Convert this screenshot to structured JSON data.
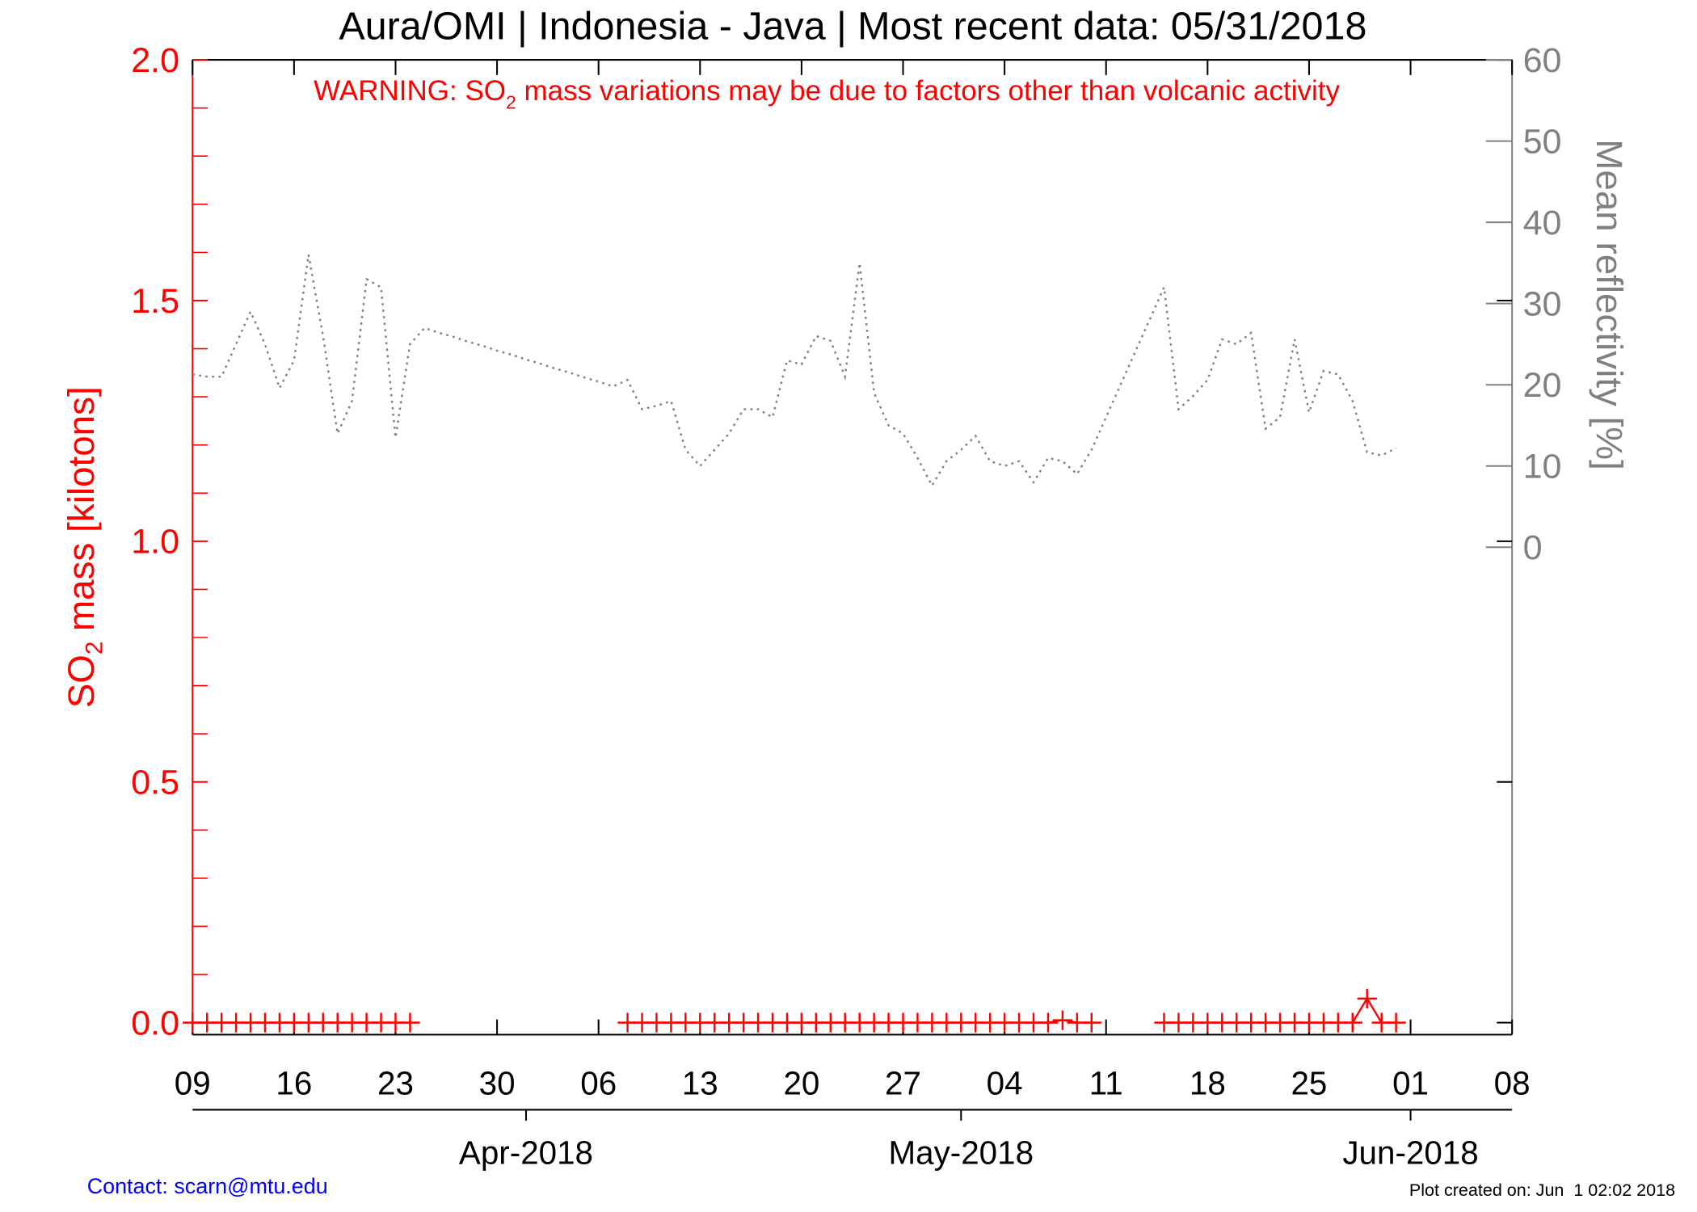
{
  "chart_data": {
    "type": "line",
    "title": "Aura/OMI | Indonesia - Java | Most recent data: 05/31/2018",
    "annotation": [
      "WARNING: SO",
      "2",
      " mass variations may be due to factors other than volcanic activity"
    ],
    "ylabel": [
      "SO",
      "2",
      " mass [kilotons]"
    ],
    "y2label": "Mean reflectivity [%]",
    "contact": "Contact: scarn@mtu.edu",
    "created": "Plot created on: Jun  1 02:02 2018",
    "x": [
      "2018-03-09",
      "2018-03-10",
      "2018-03-11",
      "2018-03-12",
      "2018-03-13",
      "2018-03-14",
      "2018-03-15",
      "2018-03-16",
      "2018-03-17",
      "2018-03-18",
      "2018-03-19",
      "2018-03-20",
      "2018-03-21",
      "2018-03-22",
      "2018-03-23",
      "2018-03-24",
      "2018-03-25",
      "2018-03-26",
      "2018-03-27",
      "2018-03-28",
      "2018-03-29",
      "2018-03-30",
      "2018-03-31",
      "2018-04-01",
      "2018-04-02",
      "2018-04-03",
      "2018-04-04",
      "2018-04-05",
      "2018-04-06",
      "2018-04-07",
      "2018-04-08",
      "2018-04-09",
      "2018-04-10",
      "2018-04-11",
      "2018-04-12",
      "2018-04-13",
      "2018-04-14",
      "2018-04-15",
      "2018-04-16",
      "2018-04-17",
      "2018-04-18",
      "2018-04-19",
      "2018-04-20",
      "2018-04-21",
      "2018-04-22",
      "2018-04-23",
      "2018-04-24",
      "2018-04-25",
      "2018-04-26",
      "2018-04-27",
      "2018-04-28",
      "2018-04-29",
      "2018-04-30",
      "2018-05-01",
      "2018-05-02",
      "2018-05-03",
      "2018-05-04",
      "2018-05-05",
      "2018-05-06",
      "2018-05-07",
      "2018-05-08",
      "2018-05-09",
      "2018-05-10",
      "2018-05-11",
      "2018-05-12",
      "2018-05-13",
      "2018-05-14",
      "2018-05-15",
      "2018-05-16",
      "2018-05-17",
      "2018-05-18",
      "2018-05-19",
      "2018-05-20",
      "2018-05-21",
      "2018-05-22",
      "2018-05-23",
      "2018-05-24",
      "2018-05-25",
      "2018-05-26",
      "2018-05-27",
      "2018-05-28",
      "2018-05-29",
      "2018-05-30",
      "2018-05-31"
    ],
    "series": [
      {
        "color": "#ff0000",
        "marker": "+",
        "linestyle": "solid",
        "axis": "y",
        "values": [
          0,
          0,
          0,
          0,
          0,
          0,
          0,
          0,
          0,
          0,
          0,
          0,
          0,
          0,
          0,
          0,
          null,
          null,
          null,
          null,
          null,
          null,
          null,
          null,
          null,
          null,
          null,
          null,
          null,
          null,
          0,
          0,
          0,
          0,
          0,
          0,
          0,
          0,
          0,
          0,
          0,
          0,
          0,
          0,
          0,
          0,
          0,
          0,
          0,
          0,
          0,
          0,
          0,
          0,
          0,
          0,
          0,
          0,
          0,
          0,
          0.005,
          0,
          0,
          null,
          null,
          null,
          null,
          0,
          0,
          0,
          0,
          0,
          0,
          0,
          0,
          0,
          0,
          0,
          0,
          0,
          0,
          0.05,
          0,
          0
        ]
      },
      {
        "color": "#808080",
        "marker": "none",
        "linestyle": "dotted",
        "axis": "y2",
        "values": [
          21.3,
          21,
          21,
          25,
          29,
          25,
          19.6,
          23,
          36,
          26,
          14,
          18,
          33,
          32,
          13.5,
          25,
          27,
          26.4,
          25.9,
          25.3,
          24.8,
          24.2,
          23.7,
          23.1,
          22.6,
          22,
          21.5,
          20.9,
          20.4,
          19.8,
          20.6,
          17,
          17.4,
          18,
          12,
          10,
          12,
          14,
          17,
          17,
          16,
          23,
          22.5,
          26,
          25.4,
          21,
          35,
          19,
          15,
          14,
          11,
          7.6,
          10.6,
          12,
          13.7,
          10.6,
          10,
          10.6,
          8,
          11,
          10.6,
          9,
          12,
          16,
          20,
          24,
          28,
          32,
          17,
          18.6,
          20.6,
          25.6,
          25,
          26.4,
          14.6,
          16,
          25.6,
          16.6,
          21.7,
          21.3,
          18,
          11.7,
          11.3,
          12.2
        ]
      }
    ],
    "xlim": [
      "2018-03-09",
      "2018-06-08"
    ],
    "xticks": [
      {
        "value": "2018-03-09",
        "label": "09"
      },
      {
        "value": "2018-03-16",
        "label": "16"
      },
      {
        "value": "2018-03-23",
        "label": "23"
      },
      {
        "value": "2018-03-30",
        "label": "30"
      },
      {
        "value": "2018-04-06",
        "label": "06"
      },
      {
        "value": "2018-04-13",
        "label": "13"
      },
      {
        "value": "2018-04-20",
        "label": "20"
      },
      {
        "value": "2018-04-27",
        "label": "27"
      },
      {
        "value": "2018-05-04",
        "label": "04"
      },
      {
        "value": "2018-05-11",
        "label": "11"
      },
      {
        "value": "2018-05-18",
        "label": "18"
      },
      {
        "value": "2018-05-25",
        "label": "25"
      },
      {
        "value": "2018-06-01",
        "label": "01"
      },
      {
        "value": "2018-06-08",
        "label": "08"
      }
    ],
    "month_ticks": [
      {
        "value": "2018-04-01",
        "label": "Apr-2018"
      },
      {
        "value": "2018-05-01",
        "label": "May-2018"
      },
      {
        "value": "2018-06-01",
        "label": "Jun-2018"
      }
    ],
    "ylim": [
      -0.025,
      2.0
    ],
    "yticks": [
      {
        "value": 0,
        "label": "0.0"
      },
      {
        "value": 0.5,
        "label": "0.5"
      },
      {
        "value": 1,
        "label": "1.0"
      },
      {
        "value": 1.5,
        "label": "1.5"
      },
      {
        "value": 2,
        "label": "2.0"
      }
    ],
    "yminorticks": [
      0.1,
      0.2,
      0.3,
      0.4,
      0.6,
      0.7,
      0.8,
      0.9,
      1.1,
      1.2,
      1.3,
      1.4,
      1.6,
      1.7,
      1.8,
      1.9
    ],
    "y2lim": [
      -60,
      60
    ],
    "y2ticks": [
      0,
      10,
      20,
      30,
      40,
      50,
      60
    ],
    "left_axis_color": "#ff0000",
    "right_axis_color": "#808080",
    "contact_color": "#0000ff"
  }
}
